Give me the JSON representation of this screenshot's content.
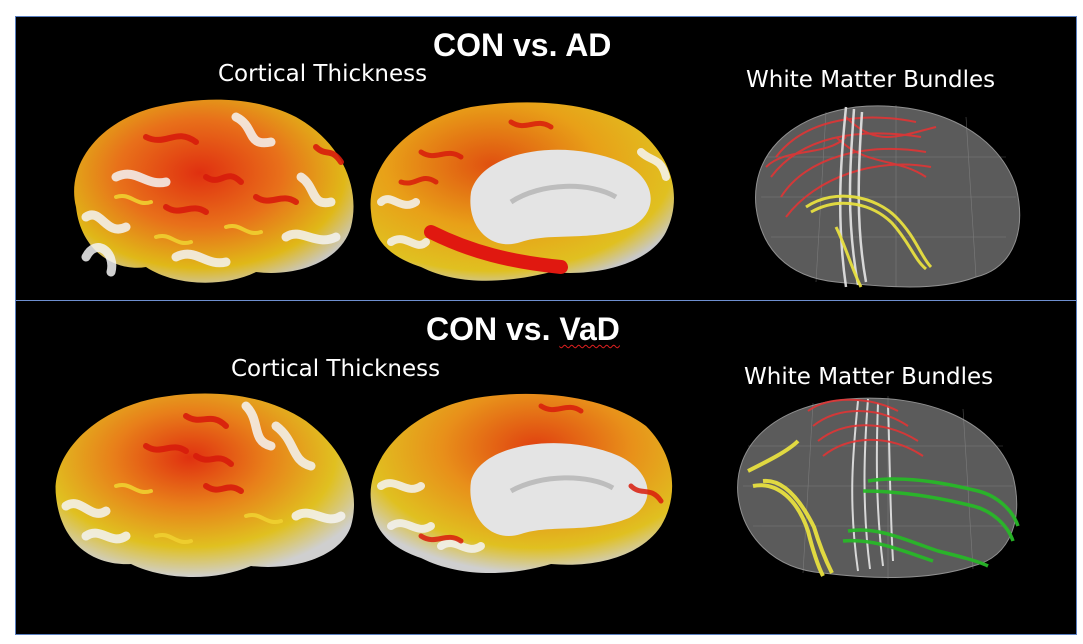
{
  "panels": [
    {
      "title": "CON vs. AD",
      "cortical_label": "Cortical Thickness",
      "wm_label": "White Matter Bundles"
    },
    {
      "title_prefix": "CON vs. ",
      "title_flagged": "VaD",
      "cortical_label": "Cortical Thickness",
      "wm_label": "White Matter Bundles"
    }
  ],
  "colors": {
    "background": "#000000",
    "cortex_base": "#d8d8d8",
    "thinning_red": "#e02010",
    "thinning_orange": "#e86a10",
    "thinning_yellow": "#e8c010",
    "tract_red": "#e03030",
    "tract_yellow": "#e8e040",
    "tract_green": "#28b828",
    "tract_white": "#e0e0e0"
  }
}
